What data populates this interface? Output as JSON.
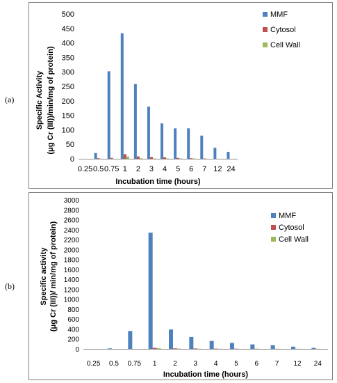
{
  "panel_labels": [
    "(a)",
    "(b)"
  ],
  "legend_colors": {
    "MMF": "#4f81bd",
    "Cytosol": "#c0504d",
    "Cell Wall": "#9bbb59"
  },
  "chart_data": [
    {
      "type": "bar",
      "categories": [
        "0.25",
        "0.5",
        "0.75",
        "1",
        "2",
        "3",
        "4",
        "5",
        "6",
        "7",
        "12",
        "24"
      ],
      "series": [
        {
          "name": "MMF",
          "values": [
            0,
            20,
            302,
            433,
            258,
            180,
            122,
            105,
            105,
            80,
            38,
            24
          ]
        },
        {
          "name": "Cytosol",
          "values": [
            0,
            2,
            3,
            16,
            8,
            6,
            5,
            3,
            2,
            1,
            0,
            0
          ]
        },
        {
          "name": "Cell Wall",
          "values": [
            0,
            0,
            0,
            8,
            2,
            1,
            1,
            1,
            1,
            0,
            0,
            0
          ]
        }
      ],
      "xlabel": "Incubation time (hours)",
      "ylabel_lines": [
        "Specific Activity",
        "(μg Cr (III))/min/mg of protein)"
      ],
      "ylim": [
        0,
        500
      ],
      "yticks": [
        0,
        50,
        100,
        150,
        200,
        250,
        300,
        350,
        400,
        450,
        500
      ],
      "grid": false,
      "legend": "top-right"
    },
    {
      "type": "bar",
      "categories": [
        "0.25",
        "0.5",
        "0.75",
        "1",
        "2",
        "3",
        "4",
        "5",
        "6",
        "7",
        "12",
        "24"
      ],
      "series": [
        {
          "name": "MMF",
          "values": [
            0,
            10,
            360,
            2340,
            390,
            240,
            160,
            120,
            90,
            75,
            45,
            20
          ]
        },
        {
          "name": "Cytosol",
          "values": [
            0,
            0,
            0,
            20,
            10,
            8,
            5,
            4,
            3,
            2,
            2,
            1
          ]
        },
        {
          "name": "Cell Wall",
          "values": [
            0,
            0,
            0,
            12,
            4,
            3,
            2,
            1,
            1,
            1,
            1,
            0
          ]
        }
      ],
      "xlabel": "Incubation time (hours)",
      "ylabel_lines": [
        "Specific activity",
        "(μg Cr (III))/ min/mg of protein)"
      ],
      "ylim": [
        0,
        3000
      ],
      "yticks": [
        0,
        200,
        400,
        600,
        800,
        1000,
        1200,
        1400,
        1600,
        1800,
        2000,
        2200,
        2400,
        2600,
        2800,
        3000
      ],
      "grid": false,
      "legend": "top-right"
    }
  ]
}
